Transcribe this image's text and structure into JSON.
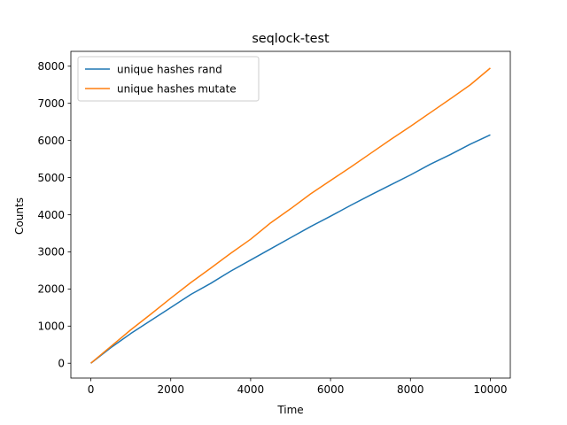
{
  "chart_data": {
    "type": "line",
    "title": "seqlock-test",
    "xlabel": "Time",
    "ylabel": "Counts",
    "xlim": [
      -500,
      10500
    ],
    "ylim": [
      -400,
      8400
    ],
    "xticks": [
      0,
      2000,
      4000,
      6000,
      8000,
      10000
    ],
    "yticks": [
      0,
      1000,
      2000,
      3000,
      4000,
      5000,
      6000,
      7000,
      8000
    ],
    "grid": false,
    "legend_position": "top-left",
    "series": [
      {
        "name": "unique hashes rand",
        "color": "#1f77b4",
        "x": [
          0,
          500,
          1000,
          1500,
          2000,
          2500,
          3000,
          3500,
          4000,
          4500,
          5000,
          5500,
          6000,
          6500,
          7000,
          7500,
          8000,
          8500,
          9000,
          9500,
          10000
        ],
        "y": [
          0,
          420,
          800,
          1150,
          1500,
          1850,
          2150,
          2480,
          2780,
          3080,
          3380,
          3680,
          3960,
          4250,
          4530,
          4800,
          5070,
          5360,
          5620,
          5900,
          6150
        ]
      },
      {
        "name": "unique hashes mutate",
        "color": "#ff7f0e",
        "x": [
          0,
          500,
          1000,
          1500,
          2000,
          2500,
          3000,
          3500,
          4000,
          4500,
          5000,
          5500,
          6000,
          6500,
          7000,
          7500,
          8000,
          8500,
          9000,
          9500,
          10000
        ],
        "y": [
          0,
          450,
          900,
          1320,
          1750,
          2170,
          2560,
          2960,
          3340,
          3780,
          4160,
          4560,
          4920,
          5280,
          5650,
          6020,
          6380,
          6750,
          7120,
          7500,
          7950
        ]
      }
    ]
  }
}
